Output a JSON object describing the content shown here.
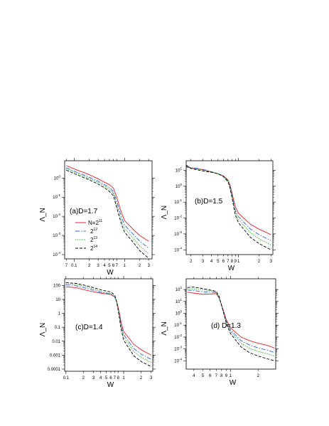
{
  "chart_data": [
    {
      "type": "line",
      "panel_label": "(a)D=1.7",
      "xlabel": "W",
      "ylabel": "Λ_N",
      "xscale": "log",
      "yscale": "log",
      "xlim": [
        0.065,
        3.5
      ],
      "ylim": [
        6e-05,
        8
      ],
      "x_ticks": [
        {
          "v": 0.07,
          "label": "7"
        },
        {
          "v": 0.1,
          "label": "0.1"
        },
        {
          "v": 0.2,
          "label": "2"
        },
        {
          "v": 0.3,
          "label": "3"
        },
        {
          "v": 0.4,
          "label": "4"
        },
        {
          "v": 0.5,
          "label": "5"
        },
        {
          "v": 0.6,
          "label": "6"
        },
        {
          "v": 0.7,
          "label": "7"
        },
        {
          "v": 1,
          "label": "1"
        },
        {
          "v": 2,
          "label": "2"
        },
        {
          "v": 3,
          "label": "3"
        }
      ],
      "y_ticks": [
        {
          "v": 0.0001,
          "label": "10",
          "exp": "-4"
        },
        {
          "v": 0.001,
          "label": "10",
          "exp": "-3"
        },
        {
          "v": 0.01,
          "label": "10",
          "exp": "-2"
        },
        {
          "v": 0.1,
          "label": "10",
          "exp": "-1"
        },
        {
          "v": 1,
          "label": "10",
          "exp": "0"
        }
      ],
      "legend": {
        "placement": "bottom-left",
        "entries": [
          {
            "base": "N=2",
            "exp": "11"
          },
          {
            "base": "2",
            "exp": "12"
          },
          {
            "base": "2",
            "exp": "13"
          },
          {
            "base": "2",
            "exp": "14"
          }
        ]
      },
      "x": [
        0.07,
        0.1,
        0.2,
        0.3,
        0.4,
        0.5,
        0.6,
        0.7,
        0.8,
        0.9,
        1.0,
        1.5,
        2.0,
        3.0
      ],
      "series": [
        {
          "color": "#e8202a",
          "dash": "",
          "values": [
            4.5,
            3.0,
            1.5,
            0.9,
            0.6,
            0.45,
            0.3,
            0.1,
            0.03,
            0.012,
            0.006,
            0.002,
            0.001,
            0.0005
          ]
        },
        {
          "color": "#3060d8",
          "dash": "6,2,1.5,2",
          "values": [
            3.5,
            2.3,
            1.1,
            0.68,
            0.45,
            0.32,
            0.2,
            0.06,
            0.018,
            0.007,
            0.0035,
            0.0011,
            0.0005,
            0.00022
          ]
        },
        {
          "color": "#20b020",
          "dash": "1.5,1.5",
          "values": [
            3.0,
            2.0,
            0.95,
            0.58,
            0.38,
            0.26,
            0.16,
            0.04,
            0.012,
            0.0045,
            0.0023,
            0.0007,
            0.00028,
            0.00011
          ]
        },
        {
          "color": "#000000",
          "dash": "4,2",
          "values": [
            2.6,
            1.7,
            0.8,
            0.48,
            0.31,
            0.2,
            0.12,
            0.028,
            0.008,
            0.003,
            0.0015,
            0.00042,
            0.00016,
            6.5e-05
          ]
        }
      ]
    },
    {
      "type": "line",
      "panel_label": "(b)D=1.5",
      "xlabel": "W",
      "ylabel": "Λ_N",
      "xscale": "log",
      "yscale": "log",
      "xlim": [
        0.17,
        3.2
      ],
      "ylim": [
        5e-05,
        40
      ],
      "x_ticks": [
        {
          "v": 0.2,
          "label": "2"
        },
        {
          "v": 0.3,
          "label": "3"
        },
        {
          "v": 0.4,
          "label": "4"
        },
        {
          "v": 0.5,
          "label": "5"
        },
        {
          "v": 0.6,
          "label": "6"
        },
        {
          "v": 0.7,
          "label": "7"
        },
        {
          "v": 0.8,
          "label": "8"
        },
        {
          "v": 0.9,
          "label": "9"
        },
        {
          "v": 1,
          "label": "1"
        },
        {
          "v": 2,
          "label": "2"
        },
        {
          "v": 3,
          "label": "3"
        }
      ],
      "y_ticks": [
        {
          "v": 0.0001,
          "label": "10",
          "exp": "-4"
        },
        {
          "v": 0.001,
          "label": "10",
          "exp": "-3"
        },
        {
          "v": 0.01,
          "label": "10",
          "exp": "-2"
        },
        {
          "v": 0.1,
          "label": "10",
          "exp": "-1"
        },
        {
          "v": 1,
          "label": "10",
          "exp": "0"
        },
        {
          "v": 10,
          "label": "10",
          "exp": "1"
        }
      ],
      "x": [
        0.17,
        0.2,
        0.3,
        0.4,
        0.5,
        0.6,
        0.7,
        0.75,
        0.8,
        0.85,
        0.9,
        1.0,
        1.5,
        2.0,
        3.0
      ],
      "series": [
        {
          "color": "#e8202a",
          "dash": "",
          "values": [
            16,
            14,
            11,
            8,
            6,
            4.5,
            2.5,
            1.2,
            0.4,
            0.13,
            0.05,
            0.02,
            0.004,
            0.002,
            0.0009
          ]
        },
        {
          "color": "#3060d8",
          "dash": "6,2,1.5,2",
          "values": [
            18,
            15,
            11.5,
            8.2,
            6,
            4.4,
            2.3,
            1.0,
            0.3,
            0.09,
            0.03,
            0.012,
            0.002,
            0.0009,
            0.00038
          ]
        },
        {
          "color": "#20b020",
          "dash": "1.5,1.5",
          "values": [
            19,
            14,
            10,
            7.8,
            6,
            4.2,
            2.1,
            0.9,
            0.25,
            0.07,
            0.022,
            0.008,
            0.0012,
            0.0005,
            0.0002
          ]
        },
        {
          "color": "#000000",
          "dash": "4,2",
          "values": [
            21,
            13,
            9,
            7.5,
            6.2,
            4.0,
            1.9,
            0.75,
            0.2,
            0.05,
            0.015,
            0.005,
            0.0006,
            0.00025,
            0.0001
          ]
        }
      ]
    },
    {
      "type": "line",
      "panel_label": "(c)D=1.4",
      "xlabel": "W",
      "ylabel": "Λ_N",
      "xscale": "log",
      "yscale": "log",
      "xlim": [
        0.095,
        3.2
      ],
      "ylim": [
        7e-05,
        300
      ],
      "x_ticks": [
        {
          "v": 0.1,
          "label": "0.1"
        },
        {
          "v": 0.2,
          "label": "2"
        },
        {
          "v": 0.3,
          "label": "3"
        },
        {
          "v": 0.4,
          "label": "4"
        },
        {
          "v": 0.5,
          "label": "5"
        },
        {
          "v": 0.6,
          "label": "6"
        },
        {
          "v": 0.7,
          "label": "7"
        },
        {
          "v": 0.8,
          "label": "8"
        },
        {
          "v": 1,
          "label": "1"
        },
        {
          "v": 2,
          "label": "2"
        },
        {
          "v": 3,
          "label": "3"
        }
      ],
      "y_ticks": [
        {
          "v": 0.0001,
          "label": "0.0001"
        },
        {
          "v": 0.001,
          "label": "0.001"
        },
        {
          "v": 0.01,
          "label": "0.01"
        },
        {
          "v": 0.1,
          "label": "0.1"
        },
        {
          "v": 1,
          "label": "1"
        },
        {
          "v": 10,
          "label": "10"
        },
        {
          "v": 100,
          "label": "100"
        }
      ],
      "x": [
        0.1,
        0.15,
        0.2,
        0.3,
        0.4,
        0.5,
        0.6,
        0.7,
        0.75,
        0.8,
        0.85,
        0.9,
        1.0,
        1.5,
        2.0,
        3.0
      ],
      "series": [
        {
          "color": "#e8202a",
          "dash": "",
          "values": [
            80,
            70,
            50,
            35,
            28,
            25,
            22,
            15,
            8,
            3,
            0.9,
            0.25,
            0.05,
            0.006,
            0.0025,
            0.001
          ]
        },
        {
          "color": "#3060d8",
          "dash": "6,2,1.5,2",
          "values": [
            110,
            95,
            70,
            45,
            32,
            27,
            23,
            15,
            7,
            2.5,
            0.6,
            0.15,
            0.03,
            0.003,
            0.0012,
            0.0005
          ]
        },
        {
          "color": "#20b020",
          "dash": "1.5,1.5",
          "values": [
            130,
            120,
            90,
            55,
            38,
            30,
            26,
            16,
            7,
            2.2,
            0.5,
            0.12,
            0.02,
            0.0018,
            0.0007,
            0.0003
          ]
        },
        {
          "color": "#000000",
          "dash": "4,2",
          "values": [
            160,
            140,
            110,
            70,
            48,
            40,
            34,
            20,
            8,
            2,
            0.4,
            0.08,
            0.012,
            0.0009,
            0.00035,
            0.00015
          ]
        }
      ]
    },
    {
      "type": "line",
      "panel_label": "(d) D=1.3",
      "xlabel": "W",
      "ylabel": "Λ_N",
      "xscale": "log",
      "yscale": "log",
      "xlim": [
        0.33,
        3.1
      ],
      "ylim": [
        2e-05,
        800
      ],
      "x_ticks": [
        {
          "v": 0.4,
          "label": "4"
        },
        {
          "v": 0.5,
          "label": "5"
        },
        {
          "v": 0.6,
          "label": "6"
        },
        {
          "v": 0.7,
          "label": "7"
        },
        {
          "v": 0.8,
          "label": "8"
        },
        {
          "v": 0.9,
          "label": "9"
        },
        {
          "v": 1,
          "label": "1"
        },
        {
          "v": 2,
          "label": "2"
        }
      ],
      "y_ticks": [
        {
          "v": 0.0001,
          "label": "10",
          "exp": "-4"
        },
        {
          "v": 0.001,
          "label": "10",
          "exp": "-3"
        },
        {
          "v": 0.01,
          "label": "10",
          "exp": "-2"
        },
        {
          "v": 0.1,
          "label": "10",
          "exp": "-1"
        },
        {
          "v": 1,
          "label": "10",
          "exp": "0"
        },
        {
          "v": 10,
          "label": "10",
          "exp": "1"
        },
        {
          "v": 100,
          "label": "10",
          "exp": "2"
        }
      ],
      "x": [
        0.34,
        0.4,
        0.5,
        0.6,
        0.7,
        0.75,
        0.8,
        0.85,
        0.9,
        1.0,
        1.3,
        1.6,
        2.0,
        2.5,
        3.0
      ],
      "series": [
        {
          "color": "#e8202a",
          "dash": "",
          "values": [
            60,
            50,
            40,
            42,
            45,
            20,
            5,
            1.2,
            0.3,
            0.06,
            0.01,
            0.005,
            0.003,
            0.002,
            0.0012
          ]
        },
        {
          "color": "#3060d8",
          "dash": "6,2,1.5,2",
          "values": [
            90,
            80,
            65,
            60,
            55,
            22,
            4.5,
            1.0,
            0.22,
            0.04,
            0.005,
            0.0022,
            0.0012,
            0.0008,
            0.0005
          ]
        },
        {
          "color": "#20b020",
          "dash": "1.5,1.5",
          "values": [
            120,
            110,
            95,
            80,
            65,
            25,
            4.5,
            0.9,
            0.18,
            0.03,
            0.003,
            0.0012,
            0.0006,
            0.0004,
            0.00025
          ]
        },
        {
          "color": "#000000",
          "dash": "4,2",
          "values": [
            150,
            160,
            120,
            90,
            70,
            28,
            4.5,
            0.8,
            0.14,
            0.02,
            0.0015,
            0.0005,
            0.00025,
            0.00015,
            0.0001
          ]
        }
      ]
    }
  ]
}
